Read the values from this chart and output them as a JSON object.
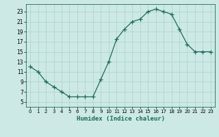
{
  "x": [
    0,
    1,
    2,
    3,
    4,
    5,
    6,
    7,
    8,
    9,
    10,
    11,
    12,
    13,
    14,
    15,
    16,
    17,
    18,
    19,
    20,
    21,
    22,
    23
  ],
  "y": [
    12,
    11,
    9,
    8,
    7,
    6,
    6,
    6,
    6,
    9.5,
    13,
    17.5,
    19.5,
    21,
    21.5,
    23,
    23.5,
    23,
    22.5,
    19.5,
    16.5,
    15,
    15,
    15
  ],
  "line_color": "#1a6b5a",
  "marker": "+",
  "marker_size": 4,
  "bg_color": "#cce9e5",
  "grid_color": "#b0d4cf",
  "xlabel": "Humidex (Indice chaleur)",
  "xlim": [
    -0.5,
    23.5
  ],
  "ylim": [
    4,
    24.5
  ],
  "yticks": [
    5,
    7,
    9,
    11,
    13,
    15,
    17,
    19,
    21,
    23
  ],
  "xticks": [
    0,
    1,
    2,
    3,
    4,
    5,
    6,
    7,
    8,
    9,
    10,
    11,
    12,
    13,
    14,
    15,
    16,
    17,
    18,
    19,
    20,
    21,
    22,
    23
  ],
  "xtick_fontsize": 5.0,
  "ytick_fontsize": 5.5,
  "label_fontsize": 6.5
}
